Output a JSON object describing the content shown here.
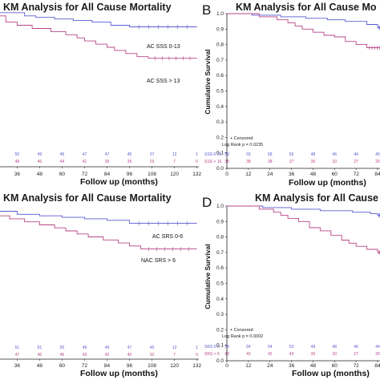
{
  "colors": {
    "blue": "#5a5ad2",
    "red": "#b8468a",
    "axis": "#222222"
  },
  "chart_data": [
    {
      "type": "line",
      "title": "KM Analysis for All Cause Mortality",
      "xlabel": "Follow up (months)",
      "ylabel": "",
      "xticks": [
        36,
        48,
        60,
        72,
        84,
        96,
        108,
        120,
        132
      ],
      "xlim": [
        26,
        133
      ],
      "ylim": [
        0.0,
        1.02
      ],
      "series": [
        {
          "name": "AC SSS 0-13",
          "color": "#5a5ad2",
          "steps": [
            [
              26,
              0.98
            ],
            [
              40,
              0.96
            ],
            [
              46,
              0.95
            ],
            [
              56,
              0.94
            ],
            [
              66,
              0.93
            ],
            [
              76,
              0.92
            ],
            [
              86,
              0.9
            ],
            [
              96,
              0.89
            ],
            [
              132,
              0.89
            ]
          ]
        },
        {
          "name": "AC SSS > 13",
          "color": "#b8468a",
          "steps": [
            [
              26,
              0.96
            ],
            [
              30,
              0.92
            ],
            [
              36,
              0.9
            ],
            [
              44,
              0.88
            ],
            [
              54,
              0.86
            ],
            [
              62,
              0.84
            ],
            [
              68,
              0.82
            ],
            [
              72,
              0.8
            ],
            [
              78,
              0.78
            ],
            [
              84,
              0.76
            ],
            [
              88,
              0.74
            ],
            [
              94,
              0.72
            ],
            [
              100,
              0.7
            ],
            [
              106,
              0.69
            ],
            [
              132,
              0.69
            ]
          ]
        }
      ],
      "risk_table": [
        {
          "row": "blue",
          "values": [
            "50",
            "49",
            "49",
            "47",
            "47",
            "45",
            "37",
            "12",
            "1"
          ]
        },
        {
          "row": "red",
          "values": [
            "48",
            "46",
            "44",
            "41",
            "39",
            "35",
            "29",
            "7",
            "0"
          ]
        }
      ]
    },
    {
      "type": "line",
      "title": "KM Analysis for All Cause Mo",
      "xlabel": "Follow up (months)",
      "ylabel": "Cumulative Survival",
      "xticks": [
        0,
        12,
        24,
        36,
        48,
        60,
        72,
        84
      ],
      "yticks": [
        "1.0",
        "0.9",
        "0.8",
        "0.7",
        "0.6",
        "0.5",
        "0.4",
        "0.3",
        "0.2",
        "0.1",
        "0.0"
      ],
      "xlim": [
        0,
        88
      ],
      "ylim": [
        0.0,
        1.0
      ],
      "series": [
        {
          "name": "SSS 0-16",
          "color": "#5a5ad2",
          "steps": [
            [
              0,
              1.0
            ],
            [
              14,
              0.99
            ],
            [
              30,
              0.98
            ],
            [
              44,
              0.97
            ],
            [
              56,
              0.96
            ],
            [
              66,
              0.95
            ],
            [
              78,
              0.93
            ],
            [
              84,
              0.91
            ],
            [
              88,
              0.91
            ]
          ]
        },
        {
          "name": "SSS > 16",
          "color": "#b8468a",
          "steps": [
            [
              0,
              1.0
            ],
            [
              18,
              0.98
            ],
            [
              28,
              0.96
            ],
            [
              34,
              0.94
            ],
            [
              38,
              0.92
            ],
            [
              42,
              0.9
            ],
            [
              48,
              0.88
            ],
            [
              54,
              0.86
            ],
            [
              60,
              0.85
            ],
            [
              66,
              0.82
            ],
            [
              72,
              0.8
            ],
            [
              78,
              0.78
            ],
            [
              88,
              0.78
            ]
          ]
        }
      ],
      "legend": [
        "+ Censored",
        "Log Rank p = 0.0235"
      ],
      "risk_table": [
        {
          "row": "SSS 0-16",
          "values": [
            "59",
            "59",
            "58",
            "56",
            "48",
            "46",
            "44",
            "40"
          ]
        },
        {
          "row": "SSS > 16",
          "values": [
            "38",
            "38",
            "38",
            "37",
            "36",
            "33",
            "27",
            "20"
          ]
        }
      ]
    },
    {
      "type": "line",
      "title": "KM Analysis for All Cause Mortality",
      "xlabel": "Follow up (months)",
      "ylabel": "",
      "xticks": [
        36,
        48,
        60,
        72,
        84,
        96,
        108,
        120,
        132
      ],
      "xlim": [
        26,
        133
      ],
      "ylim": [
        0.0,
        1.02
      ],
      "series": [
        {
          "name": "AC SRS 0-6",
          "color": "#5a5ad2",
          "steps": [
            [
              26,
              0.98
            ],
            [
              36,
              0.96
            ],
            [
              48,
              0.95
            ],
            [
              60,
              0.94
            ],
            [
              72,
              0.93
            ],
            [
              84,
              0.92
            ],
            [
              96,
              0.9
            ],
            [
              132,
              0.9
            ]
          ]
        },
        {
          "name": "NAC SRS > 6",
          "color": "#b8468a",
          "steps": [
            [
              26,
              0.95
            ],
            [
              32,
              0.93
            ],
            [
              40,
              0.91
            ],
            [
              48,
              0.89
            ],
            [
              56,
              0.87
            ],
            [
              62,
              0.85
            ],
            [
              68,
              0.83
            ],
            [
              74,
              0.81
            ],
            [
              82,
              0.79
            ],
            [
              90,
              0.77
            ],
            [
              96,
              0.75
            ],
            [
              102,
              0.73
            ],
            [
              132,
              0.73
            ]
          ]
        }
      ],
      "risk_table": [
        {
          "row": "blue",
          "values": [
            "51",
            "51",
            "50",
            "49",
            "49",
            "47",
            "45",
            "12",
            "1"
          ]
        },
        {
          "row": "red",
          "values": [
            "47",
            "46",
            "45",
            "43",
            "42",
            "40",
            "32",
            "7",
            "0"
          ]
        }
      ]
    },
    {
      "type": "line",
      "title": "KM Analysis for All Cause Mo",
      "xlabel": "Follow up (months)",
      "ylabel": "Cumulative Survival",
      "xticks": [
        0,
        12,
        24,
        36,
        48,
        60,
        72,
        84
      ],
      "yticks": [
        "1.0",
        "0.9",
        "0.8",
        "0.7",
        "0.6",
        "0.5",
        "0.4",
        "0.3",
        "0.2",
        "0.1",
        "0.0"
      ],
      "xlim": [
        0,
        88
      ],
      "ylim": [
        0.0,
        1.0
      ],
      "series": [
        {
          "name": "SRS 0-6",
          "color": "#5a5ad2",
          "steps": [
            [
              0,
              1.0
            ],
            [
              20,
              0.99
            ],
            [
              36,
              0.98
            ],
            [
              52,
              0.97
            ],
            [
              70,
              0.96
            ],
            [
              80,
              0.95
            ],
            [
              84,
              0.94
            ],
            [
              88,
              0.94
            ]
          ]
        },
        {
          "name": "SRS > 6",
          "color": "#b8468a",
          "steps": [
            [
              0,
              1.0
            ],
            [
              18,
              0.98
            ],
            [
              26,
              0.96
            ],
            [
              30,
              0.94
            ],
            [
              34,
              0.92
            ],
            [
              40,
              0.9
            ],
            [
              46,
              0.86
            ],
            [
              52,
              0.84
            ],
            [
              58,
              0.81
            ],
            [
              64,
              0.78
            ],
            [
              68,
              0.76
            ],
            [
              72,
              0.74
            ],
            [
              78,
              0.72
            ],
            [
              84,
              0.7
            ],
            [
              88,
              0.7
            ]
          ]
        }
      ],
      "legend": [
        "+ Censored",
        "Log Rank p = 0.0002"
      ],
      "risk_table": [
        {
          "row": "SRS 0-6",
          "values": [
            "54",
            "54",
            "54",
            "53",
            "49",
            "48",
            "46",
            "44"
          ]
        },
        {
          "row": "SRS > 6",
          "values": [
            "43",
            "43",
            "42",
            "40",
            "36",
            "33",
            "27",
            "20"
          ]
        }
      ]
    }
  ],
  "letters": {
    "b": "B",
    "d": "D"
  }
}
